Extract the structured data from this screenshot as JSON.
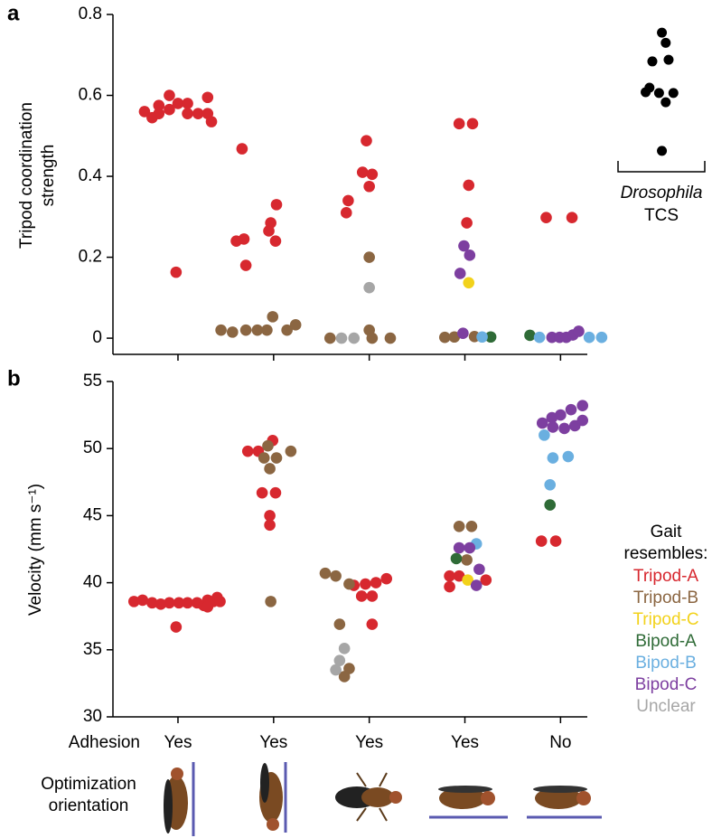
{
  "chart_data": [
    {
      "type": "scatter",
      "panel": "a",
      "y_label": "Tripod coordination strength",
      "xlim": [
        0.32,
        5.28
      ],
      "ylim": [
        -0.04,
        0.8
      ],
      "yticks": [
        0,
        0.2,
        0.4,
        0.6,
        0.8
      ],
      "series": [
        {
          "name": "Tripod-A",
          "color": "#d7282f",
          "x": [
            0.65,
            0.73,
            0.8,
            0.8,
            0.91,
            0.91,
            1.0,
            1.1,
            1.1,
            1.21,
            1.31,
            1.31,
            1.35,
            0.98,
            1.67,
            2.03,
            1.97,
            1.95,
            1.61,
            1.69,
            2.02,
            1.71,
            2.97,
            2.93,
            3.03,
            3.0,
            2.78,
            2.76,
            3.94,
            4.08,
            4.04,
            4.02,
            4.85,
            5.12
          ],
          "values": [
            0.56,
            0.545,
            0.575,
            0.555,
            0.6,
            0.565,
            0.58,
            0.58,
            0.555,
            0.555,
            0.595,
            0.555,
            0.535,
            0.163,
            0.468,
            0.33,
            0.285,
            0.265,
            0.24,
            0.245,
            0.24,
            0.18,
            0.488,
            0.41,
            0.405,
            0.375,
            0.34,
            0.31,
            0.53,
            0.53,
            0.378,
            0.285,
            0.298,
            0.298
          ]
        },
        {
          "name": "Tripod-B",
          "color": "#8b6642",
          "x": [
            1.99,
            1.45,
            1.57,
            1.71,
            1.83,
            1.93,
            2.14,
            2.23,
            3.0,
            3.0,
            2.59,
            3.03,
            3.22,
            3.79,
            3.89,
            4.1
          ],
          "values": [
            0.053,
            0.02,
            0.015,
            0.02,
            0.02,
            0.02,
            0.02,
            0.033,
            0.2,
            0.02,
            0,
            0,
            0,
            0.002,
            0.003,
            0.004
          ]
        },
        {
          "name": "Tripod-C",
          "color": "#f2d21b",
          "x": [
            4.04
          ],
          "values": [
            0.137
          ]
        },
        {
          "name": "Bipod-A",
          "color": "#2f6b37",
          "x": [
            4.27,
            4.68
          ],
          "values": [
            0.003,
            0.007
          ]
        },
        {
          "name": "Bipod-B",
          "color": "#6aafe0",
          "x": [
            4.18,
            4.78,
            5.3,
            5.43
          ],
          "values": [
            0.003,
            0.002,
            0.002,
            0.002
          ]
        },
        {
          "name": "Bipod-C",
          "color": "#7d3fa0",
          "x": [
            3.99,
            4.05,
            3.95,
            3.98,
            4.91,
            4.99,
            5.06,
            5.13,
            5.19
          ],
          "values": [
            0.228,
            0.205,
            0.16,
            0.012,
            0.002,
            0.002,
            0.002,
            0.008,
            0.017
          ]
        },
        {
          "name": "Unclear",
          "color": "#a6a6a6",
          "x": [
            3.0,
            2.71,
            2.84
          ],
          "values": [
            0.125,
            0,
            0
          ]
        }
      ],
      "reference": {
        "label": "Drosophila",
        "sublabel": "TCS",
        "color": "#000000",
        "x": [
          6.06,
          6.1,
          5.96,
          6.13,
          5.93,
          6.03,
          5.89,
          6.18,
          6.1,
          6.06
        ],
        "values": [
          0.755,
          0.73,
          0.684,
          0.688,
          0.619,
          0.606,
          0.608,
          0.606,
          0.583,
          0.463
        ]
      }
    },
    {
      "type": "scatter",
      "panel": "b",
      "y_label": "Velocity (mm s⁻¹)",
      "xlim": [
        0.32,
        5.28
      ],
      "ylim": [
        30,
        55
      ],
      "yticks": [
        30,
        35,
        40,
        45,
        50,
        55
      ],
      "x_label": "Adhesion",
      "categories": [
        "Yes",
        "Yes",
        "Yes",
        "Yes",
        "No"
      ],
      "row_label": "Optimization orientation",
      "legend_title": "Gait resembles:",
      "series": [
        {
          "name": "Tripod-A",
          "color": "#d7282f",
          "x": [
            0.54,
            0.63,
            0.73,
            0.82,
            0.91,
            1.01,
            1.1,
            1.2,
            1.27,
            1.31,
            1.37,
            1.41,
            1.44,
            1.31,
            0.98,
            1.73,
            1.84,
            1.99,
            1.88,
            2.02,
            1.96,
            1.96,
            2.84,
            2.96,
            3.07,
            3.18,
            2.92,
            3.03,
            3.03,
            3.84,
            3.94,
            4.22,
            3.84,
            4.8,
            4.95
          ],
          "values": [
            38.6,
            38.7,
            38.5,
            38.4,
            38.5,
            38.5,
            38.5,
            38.5,
            38.3,
            38.7,
            38.6,
            38.9,
            38.6,
            38.2,
            36.7,
            49.8,
            49.8,
            50.6,
            46.7,
            46.7,
            45.0,
            44.3,
            39.8,
            39.9,
            40.0,
            40.3,
            39.0,
            39.0,
            36.9,
            40.5,
            40.5,
            40.2,
            39.7,
            43.1,
            43.1
          ]
        },
        {
          "name": "Tripod-B",
          "color": "#8b6642",
          "x": [
            1.94,
            2.18,
            1.9,
            2.03,
            1.96,
            1.97,
            2.54,
            2.65,
            2.79,
            2.69,
            2.79,
            2.74,
            3.94,
            4.07,
            4.02
          ],
          "values": [
            50.2,
            49.8,
            49.3,
            49.3,
            48.5,
            38.6,
            40.7,
            40.5,
            39.9,
            36.9,
            33.6,
            33.0,
            44.2,
            44.2,
            41.7
          ]
        },
        {
          "name": "Tripod-C",
          "color": "#f2d21b",
          "x": [
            4.03
          ],
          "values": [
            40.2
          ]
        },
        {
          "name": "Bipod-A",
          "color": "#2f6b37",
          "x": [
            3.91,
            4.89
          ],
          "values": [
            41.8,
            45.8
          ]
        },
        {
          "name": "Bipod-B",
          "color": "#6aafe0",
          "x": [
            4.12,
            4.83,
            5.08,
            4.92,
            4.89
          ],
          "values": [
            42.9,
            51.0,
            49.4,
            49.3,
            47.3
          ]
        },
        {
          "name": "Bipod-C",
          "color": "#7d3fa0",
          "x": [
            3.94,
            4.05,
            4.15,
            4.12,
            4.91,
            5.0,
            5.11,
            5.23,
            4.81,
            4.92,
            5.04,
            5.15,
            5.23
          ],
          "values": [
            42.6,
            42.6,
            41.0,
            39.8,
            52.3,
            52.5,
            52.9,
            53.2,
            51.9,
            51.6,
            51.5,
            51.7,
            52.1
          ]
        },
        {
          "name": "Unclear",
          "color": "#a6a6a6",
          "x": [
            2.74,
            2.69,
            2.65
          ],
          "values": [
            35.1,
            34.2,
            33.5
          ]
        }
      ]
    }
  ]
}
